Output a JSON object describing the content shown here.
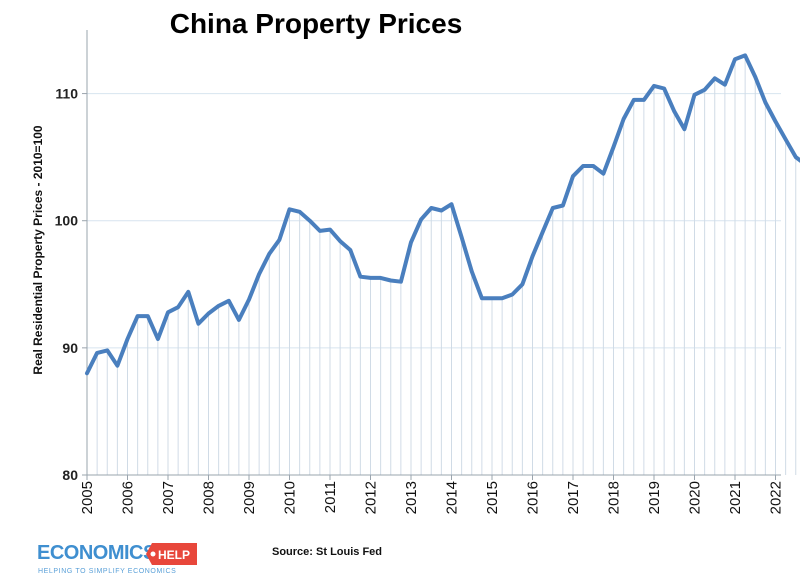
{
  "chart_data": {
    "type": "line",
    "title": "China Property Prices",
    "xlabel": "",
    "ylabel": "Real Residential Property Prices - 2010=100",
    "ylim": [
      80,
      115
    ],
    "yticks": [
      80,
      90,
      100,
      110
    ],
    "x_tick_labels": [
      "2005",
      "2006",
      "2007",
      "2008",
      "2009",
      "2010",
      "2011",
      "2012",
      "2013",
      "2014",
      "2015",
      "2016",
      "2017",
      "2018",
      "2019",
      "2020",
      "2021",
      "2022"
    ],
    "x_start": 2005.0,
    "x_step": 0.25,
    "series": [
      {
        "name": "Real Residential Property Prices",
        "color": "#4a7fbe",
        "values": [
          88.0,
          89.6,
          89.8,
          88.6,
          90.7,
          92.5,
          92.5,
          90.7,
          92.8,
          93.2,
          94.4,
          91.9,
          92.7,
          93.3,
          93.7,
          92.2,
          93.8,
          95.8,
          97.4,
          98.5,
          100.9,
          100.7,
          100.0,
          99.2,
          99.3,
          98.4,
          97.7,
          95.6,
          95.5,
          95.5,
          95.3,
          95.2,
          98.3,
          100.1,
          101.0,
          100.8,
          101.3,
          98.7,
          96.0,
          93.9,
          93.9,
          93.9,
          94.2,
          95.0,
          97.2,
          99.1,
          101.0,
          101.2,
          103.5,
          104.3,
          104.3,
          103.7,
          105.8,
          108.0,
          109.5,
          109.5,
          110.6,
          110.4,
          108.6,
          107.2,
          109.9,
          110.3,
          111.2,
          110.7,
          112.7,
          113.0,
          111.3,
          109.3,
          107.8,
          106.4,
          105.0,
          104.4
        ]
      }
    ],
    "source": "Source: St Louis Fed"
  },
  "logo": {
    "main": "ECONOMICS",
    "tag": "HELP",
    "subtitle": "HELPING TO SIMPLIFY ECONOMICS"
  }
}
